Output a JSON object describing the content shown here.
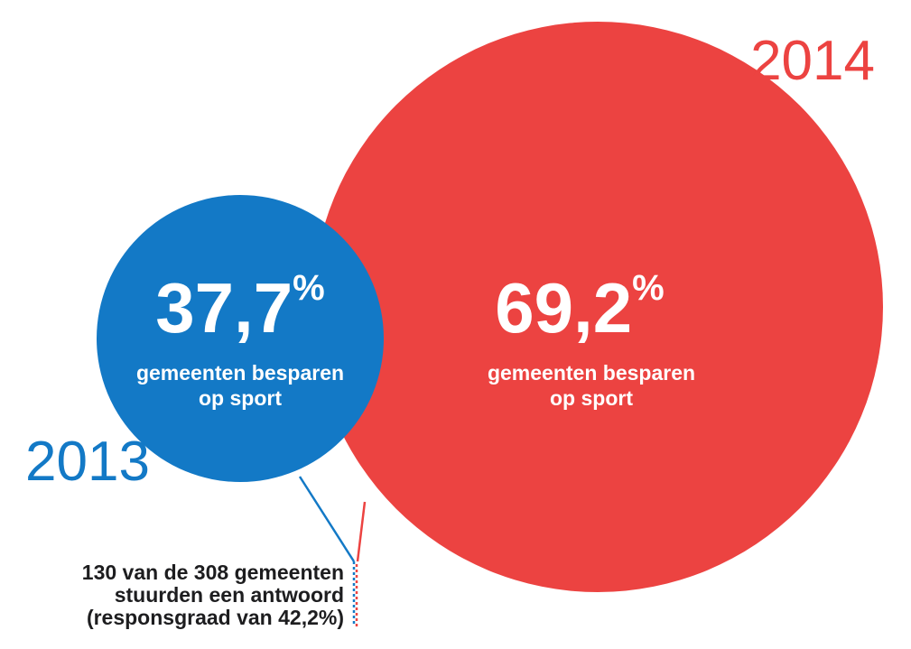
{
  "colors": {
    "year_2013": "#1379c6",
    "year_2014": "#ec4341",
    "text_on_circle": "#ffffff",
    "note_text": "#1d1d1f"
  },
  "chart_data": {
    "type": "bubble",
    "unit": "%",
    "series": [
      {
        "year": "2013",
        "value": 37.7,
        "value_label": "37,7",
        "value_suffix": "%",
        "label_line1": "gemeenten besparen",
        "label_line2": "op sport",
        "color": "#1379c6"
      },
      {
        "year": "2014",
        "value": 69.2,
        "value_label": "69,2",
        "value_suffix": "%",
        "label_line1": "gemeenten besparen",
        "label_line2": "op sport",
        "color": "#ec4341"
      }
    ],
    "note": [
      "130 van de 308 gemeenten",
      "stuurden een antwoord",
      "(responsgraad van 42,2%)"
    ]
  }
}
